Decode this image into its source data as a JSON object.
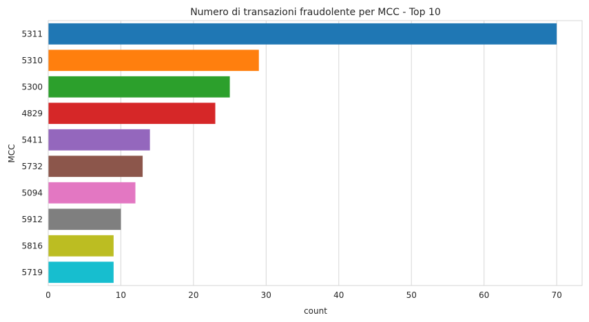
{
  "chart_data": {
    "type": "bar",
    "orientation": "horizontal",
    "title": "Numero di transazioni fraudolente per MCC - Top 10",
    "xlabel": "count",
    "ylabel": "MCC",
    "categories": [
      "5311",
      "5310",
      "5300",
      "4829",
      "5411",
      "5732",
      "5094",
      "5912",
      "5816",
      "5719"
    ],
    "values": [
      70,
      29,
      25,
      23,
      14,
      13,
      12,
      10,
      9,
      9
    ],
    "xlim": [
      0,
      73.5
    ],
    "xticks": [
      0,
      10,
      20,
      30,
      40,
      50,
      60,
      70
    ],
    "grid": "vertical",
    "colors": [
      "#1f77b4",
      "#ff7f0e",
      "#2ca02c",
      "#d62728",
      "#9467bd",
      "#8c564b",
      "#e377c2",
      "#7f7f7f",
      "#bcbd22",
      "#17becf"
    ]
  }
}
